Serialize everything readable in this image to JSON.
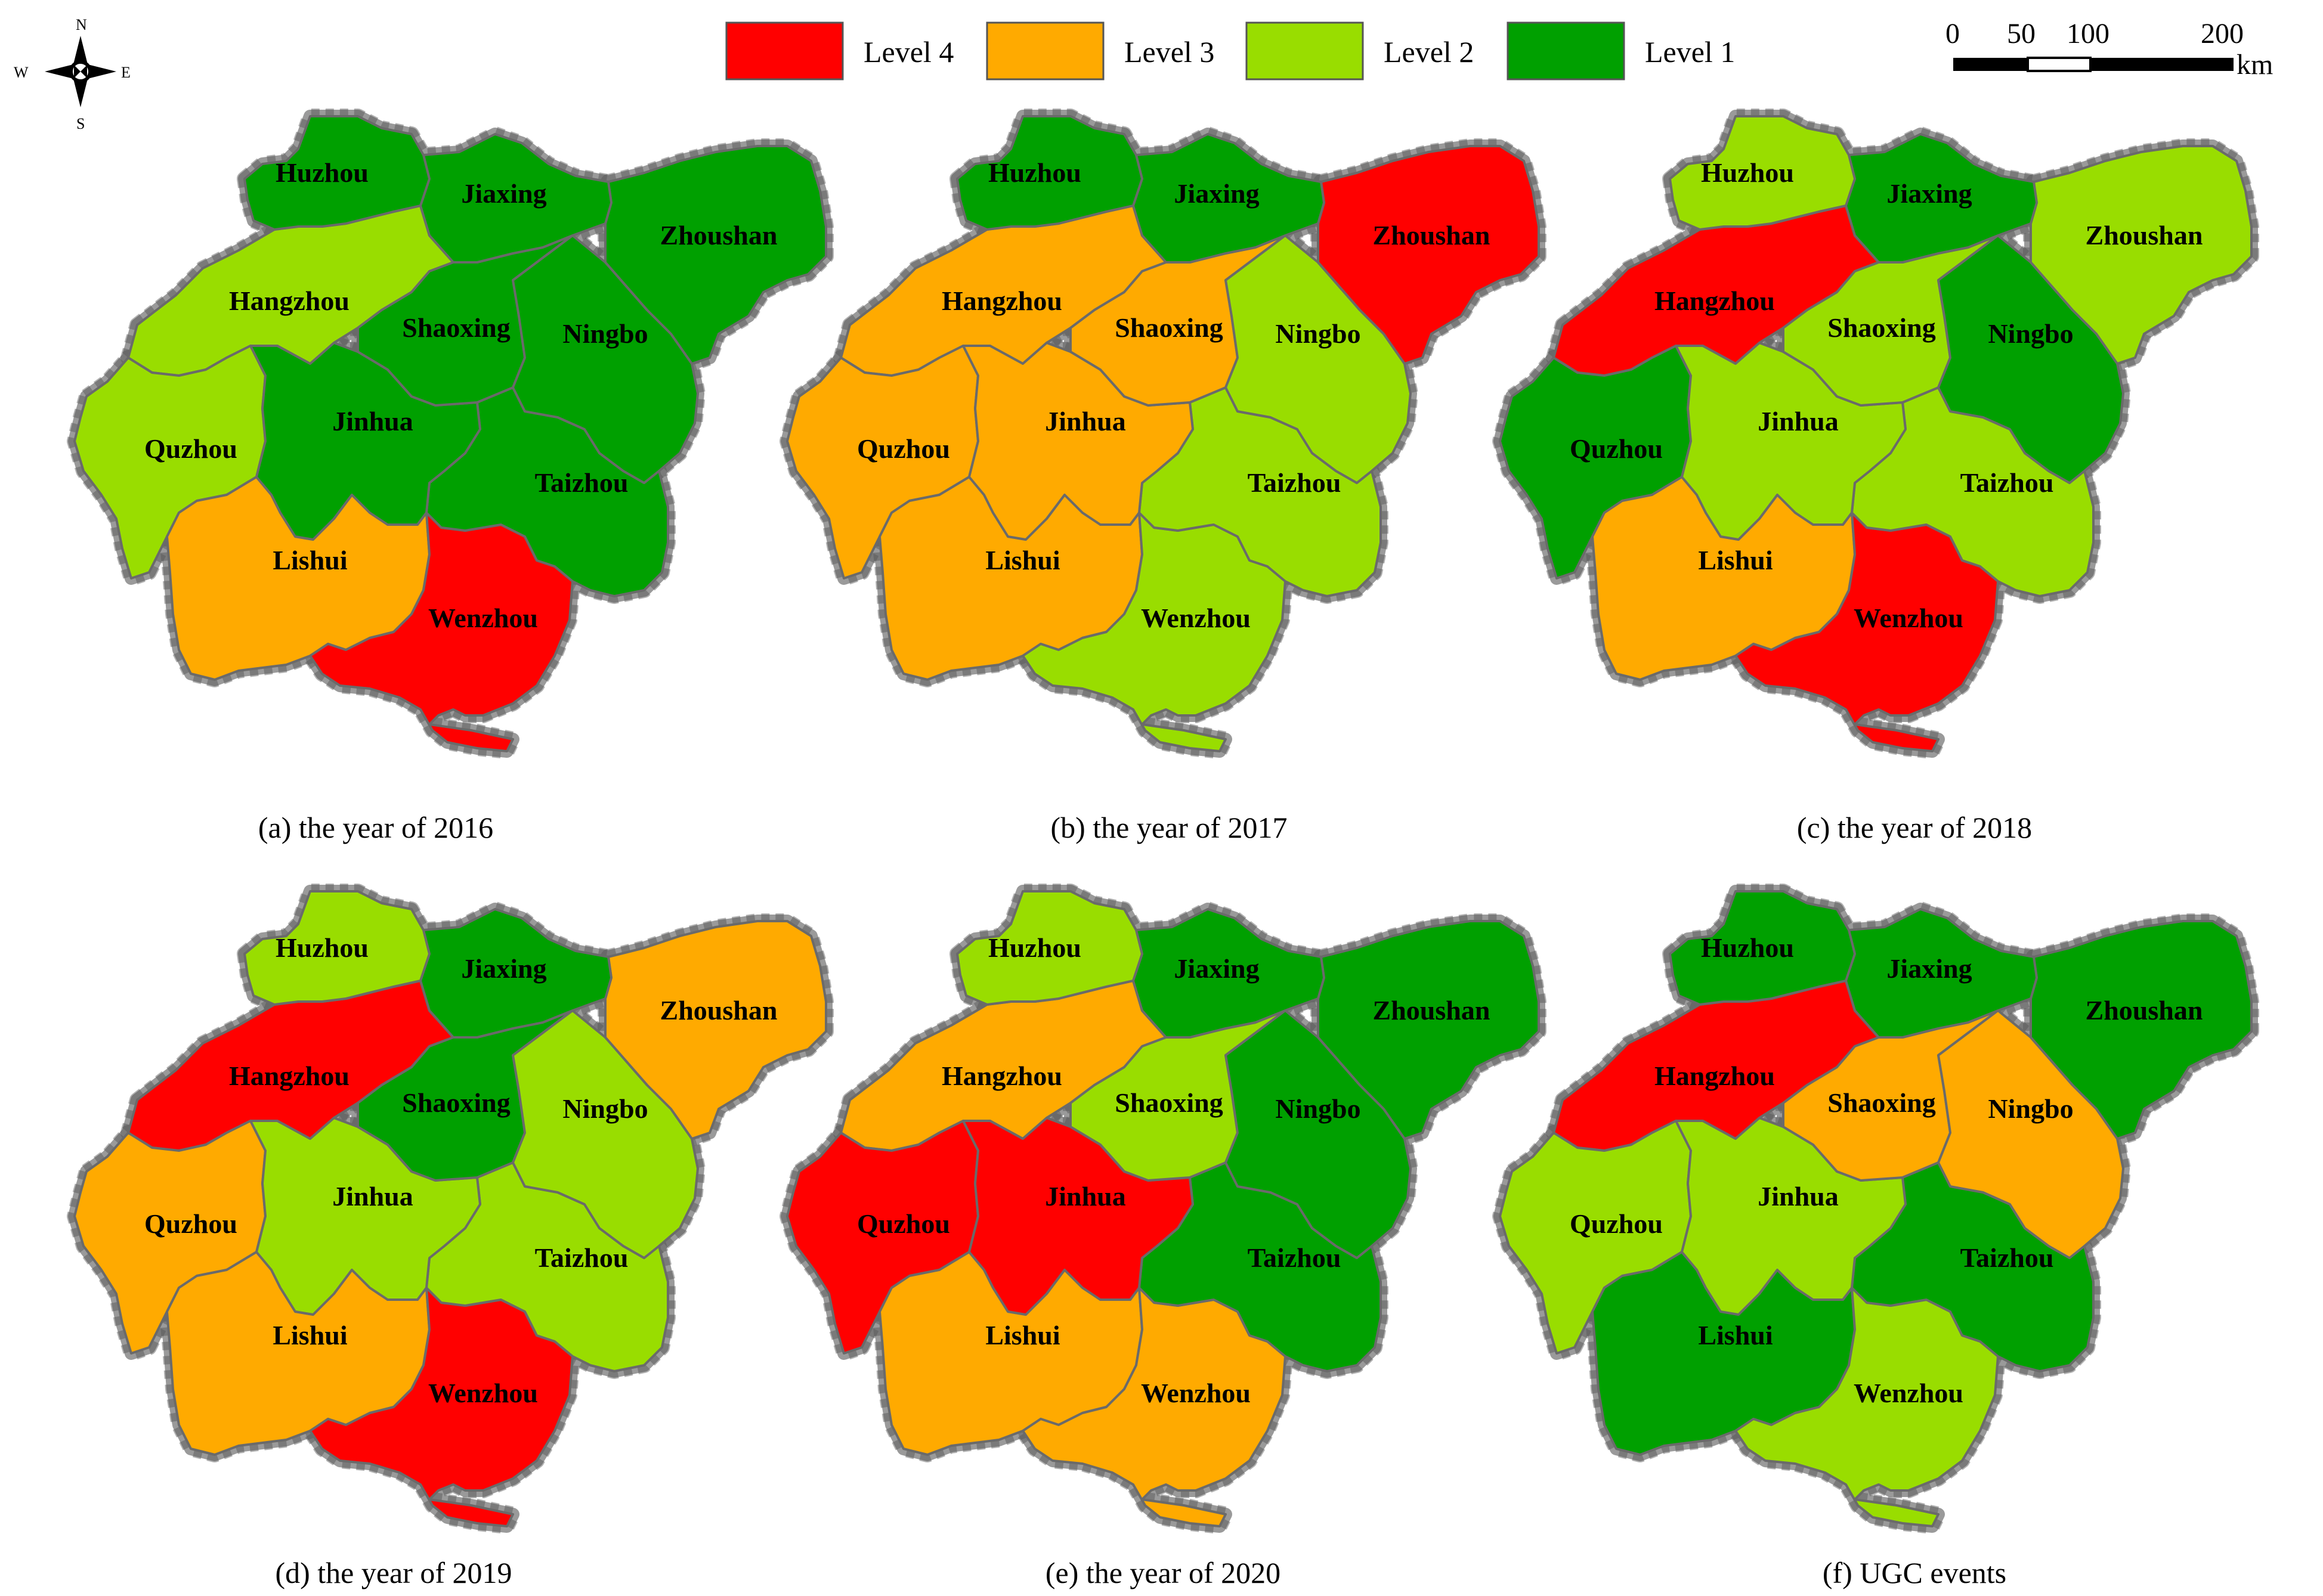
{
  "compass": {
    "n": "N",
    "s": "S",
    "w": "W",
    "e": "E"
  },
  "legend": {
    "title": "",
    "items": [
      {
        "label": "Level 4",
        "color": "#FF0000"
      },
      {
        "label": "Level 3",
        "color": "#FFAA00"
      },
      {
        "label": "Level 2",
        "color": "#99DD00"
      },
      {
        "label": "Level 1",
        "color": "#00A000"
      }
    ]
  },
  "scalebar": {
    "ticks": [
      "0",
      "50",
      "100",
      "200"
    ],
    "unit": "km"
  },
  "panels": [
    {
      "caption": "(a) the year of 2016",
      "levels": {
        "Huzhou": 1,
        "Jiaxing": 1,
        "Zhoushan": 1,
        "Hangzhou": 2,
        "Shaoxing": 1,
        "Ningbo": 1,
        "Quzhou": 2,
        "Jinhua": 1,
        "Taizhou": 1,
        "Lishui": 3,
        "Wenzhou": 4
      }
    },
    {
      "caption": "(b) the year of 2017",
      "levels": {
        "Huzhou": 1,
        "Jiaxing": 1,
        "Zhoushan": 4,
        "Hangzhou": 3,
        "Shaoxing": 3,
        "Ningbo": 2,
        "Quzhou": 3,
        "Jinhua": 3,
        "Taizhou": 2,
        "Lishui": 3,
        "Wenzhou": 2
      }
    },
    {
      "caption": "(c) the year of 2018",
      "levels": {
        "Huzhou": 2,
        "Jiaxing": 1,
        "Zhoushan": 2,
        "Hangzhou": 4,
        "Shaoxing": 2,
        "Ningbo": 1,
        "Quzhou": 1,
        "Jinhua": 2,
        "Taizhou": 2,
        "Lishui": 3,
        "Wenzhou": 4
      }
    },
    {
      "caption": "(d) the year of 2019",
      "levels": {
        "Huzhou": 2,
        "Jiaxing": 1,
        "Zhoushan": 3,
        "Hangzhou": 4,
        "Shaoxing": 1,
        "Ningbo": 2,
        "Quzhou": 3,
        "Jinhua": 2,
        "Taizhou": 2,
        "Lishui": 3,
        "Wenzhou": 4
      }
    },
    {
      "caption": "(e) the year of 2020",
      "levels": {
        "Huzhou": 2,
        "Jiaxing": 1,
        "Zhoushan": 1,
        "Hangzhou": 3,
        "Shaoxing": 2,
        "Ningbo": 1,
        "Quzhou": 4,
        "Jinhua": 4,
        "Taizhou": 1,
        "Lishui": 3,
        "Wenzhou": 3
      }
    },
    {
      "caption": "(f) UGC events",
      "levels": {
        "Huzhou": 1,
        "Jiaxing": 1,
        "Zhoushan": 1,
        "Hangzhou": 4,
        "Shaoxing": 3,
        "Ningbo": 3,
        "Quzhou": 2,
        "Jinhua": 2,
        "Taizhou": 1,
        "Lishui": 1,
        "Wenzhou": 2
      }
    }
  ],
  "city_labels": {
    "Huzhou": "Huzhou",
    "Jiaxing": "Jiaxing",
    "Zhoushan": "Zhoushan",
    "Hangzhou": "Hangzhou",
    "Shaoxing": "Shaoxing",
    "Ningbo": "Ningbo",
    "Quzhou": "Quzhou",
    "Jinhua": "Jinhua",
    "Taizhou": "Taizhou",
    "Lishui": "Lishui",
    "Wenzhou": "Wenzhou"
  }
}
